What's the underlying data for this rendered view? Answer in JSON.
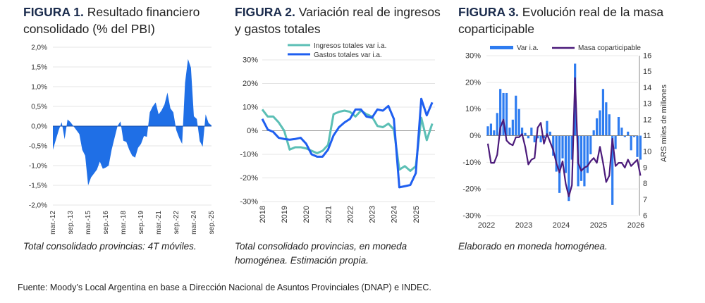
{
  "figures": [
    {
      "label": "FIGURA 1.",
      "title": "Resultado financiero consolidado (% del PBI)",
      "caption": "Total consolidado provincias: 4T móviles."
    },
    {
      "label": "FIGURA 2.",
      "title": "Variación real de ingresos y gastos totales",
      "caption": "Total consolidado provincias, en moneda homogénea. Estimación propia."
    },
    {
      "label": "FIGURA 3.",
      "title": "Evolución real de la masa coparticipable",
      "caption": "Elaborado en moneda homogénea."
    }
  ],
  "footer": "Fuente: Moody’s Local Argentina en base a Dirección Nacional de Asuntos Provinciales (DNAP) e INDEC.",
  "chart_data": [
    {
      "type": "area",
      "frequency": "quarterly",
      "start": "mar.-12",
      "ylim": [
        -2,
        2
      ],
      "yticks": [
        "2,0%",
        "1,5%",
        "1,0%",
        "0,5%",
        "0,0%",
        "-0,5%",
        "-1,0%",
        "-1,5%",
        "-2,0%"
      ],
      "xticks": [
        "mar.-12",
        "sep.-13",
        "mar.-15",
        "sep.-16",
        "mar.-18",
        "sep.-19",
        "mar.-21",
        "sep.-22",
        "mar.-24",
        "sep.-25"
      ],
      "color": "#1f6fe6",
      "values": [
        -0.6,
        -0.35,
        -0.1,
        0.1,
        -0.33,
        0.17,
        0.1,
        0.0,
        -0.1,
        -0.2,
        -0.6,
        -0.75,
        -1.5,
        -1.3,
        -1.2,
        -1.1,
        -0.9,
        -1.08,
        -1.05,
        -1.0,
        -0.6,
        -0.3,
        0.0,
        0.12,
        -0.37,
        -0.4,
        -0.6,
        -0.75,
        -0.8,
        -0.55,
        -0.45,
        -0.25,
        -0.27,
        0.35,
        0.5,
        0.6,
        0.3,
        0.4,
        0.55,
        0.85,
        0.45,
        0.35,
        -0.1,
        -0.3,
        -0.45,
        1.1,
        1.7,
        1.48,
        0.25,
        0.18,
        -0.38,
        -0.52,
        0.3,
        0.08,
        0.02
      ]
    },
    {
      "type": "line",
      "frequency": "quarterly",
      "ylim": [
        -30,
        30
      ],
      "yticks": [
        "30%",
        "20%",
        "10%",
        "0%",
        "-10%",
        "-20%",
        "-30%"
      ],
      "xticks": [
        "2018",
        "2019",
        "2020",
        "2021",
        "2022",
        "2023",
        "2024",
        "2025"
      ],
      "legend": "top",
      "series": [
        {
          "name": "Ingresos totales var i.a.",
          "color": "#5bbfb5",
          "values": [
            9,
            6,
            6,
            3.5,
            0,
            -8,
            -7,
            -7,
            -7.5,
            -8.5,
            -9.5,
            -8.5,
            -6,
            7,
            8,
            8.5,
            8,
            6,
            8.5,
            7,
            6,
            2,
            1.5,
            3,
            0.5,
            -16.5,
            -15,
            -17,
            -15,
            5.5,
            -4,
            3
          ]
        },
        {
          "name": "Gastos totales var i.a.",
          "color": "#1f5ff0",
          "values": [
            5,
            0.5,
            -0.5,
            -3,
            -3.5,
            -3.8,
            -3.5,
            -3,
            -5.5,
            -10,
            -11,
            -11,
            -8,
            -2,
            1.5,
            3.5,
            5,
            9,
            9,
            6,
            5.5,
            9,
            8.5,
            10.5,
            5,
            -24,
            -23.5,
            -23,
            -18,
            13.5,
            6.5,
            12
          ]
        }
      ]
    },
    {
      "type": "bar+line",
      "frequency": "monthly",
      "ylim": [
        -30,
        30
      ],
      "y2lim": [
        6,
        16
      ],
      "yticks": [
        "30%",
        "20%",
        "10%",
        "0%",
        "-10%",
        "-20%",
        "-30%"
      ],
      "y2ticks": [
        "16",
        "15",
        "14",
        "13",
        "12",
        "11",
        "10",
        "9",
        "8",
        "7",
        "6"
      ],
      "y2label": "ARS miles de millones",
      "xticks": [
        "2022",
        "2023",
        "2024",
        "2025",
        "2026"
      ],
      "legend": "top",
      "series": [
        {
          "name": "Var i.a.",
          "type": "bar",
          "axis": "left",
          "color": "#2e7cf0",
          "values": [
            3.5,
            4.5,
            2,
            8.5,
            17.5,
            16,
            16,
            3,
            6,
            15,
            10,
            3,
            1,
            -1,
            3,
            -2.5,
            -1,
            -2.5,
            -1,
            5.5,
            1.5,
            -7.5,
            -13.5,
            -21.5,
            -8.5,
            -14,
            -24.5,
            -9,
            27,
            -19,
            -17,
            -19,
            -14,
            -7,
            2,
            6.5,
            9.5,
            17.5,
            12.5,
            8,
            -26,
            -5,
            7,
            3,
            -0.5,
            1.5,
            -5.5,
            -0.5,
            -8,
            -9
          ]
        },
        {
          "name": "Masa coparticipable",
          "type": "line",
          "axis": "right",
          "color": "#4b1a7a",
          "values": [
            10.5,
            9.3,
            9.3,
            9.8,
            11.5,
            12,
            10.7,
            10.5,
            10.4,
            10.9,
            10.9,
            11.1,
            10.3,
            9.2,
            9.5,
            9.6,
            11.5,
            11.8,
            10.5,
            11.1,
            10.6,
            10.1,
            9.3,
            8.7,
            9.4,
            8,
            7.2,
            7.9,
            14.6,
            9.3,
            8.8,
            9,
            9.1,
            9.4,
            9.6,
            9.3,
            10.3,
            9.3,
            8.1,
            8.5,
            10.8,
            9.1,
            9.3,
            9.3,
            9,
            9.5,
            9.1,
            9.3,
            9.5,
            8.5
          ]
        }
      ]
    }
  ]
}
